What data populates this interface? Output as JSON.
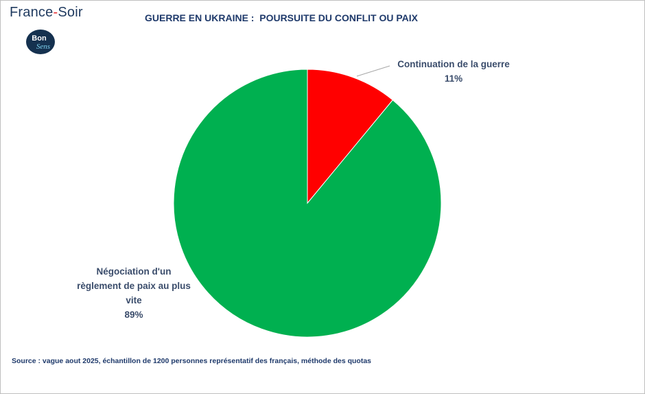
{
  "brand": {
    "name_part1": "France",
    "name_dash": "-",
    "name_part2": "Soir",
    "logo_text_top": "Bon",
    "logo_text_bottom": "Sens",
    "logo_color": "#15314f",
    "accent_color": "#e3262b"
  },
  "chart_data": {
    "type": "pie",
    "title": "GUERRE EN UKRAINE :  POURSUITE DU CONFLIT OU PAIX",
    "slices": [
      {
        "label_lines": [
          "Continuation de la guerre"
        ],
        "value": 11,
        "value_label": "11%",
        "color": "#ff0000"
      },
      {
        "label_lines": [
          "Négociation d'un",
          "règlement de paix au plus",
          "vite"
        ],
        "value": 89,
        "value_label": "89%",
        "color": "#00b050"
      }
    ],
    "start_angle": "12 o'clock",
    "direction": "clockwise",
    "legend": "none"
  },
  "source": "Source : vague aout 2025, échantillon de 1200 personnes représentatif des français, méthode des quotas"
}
